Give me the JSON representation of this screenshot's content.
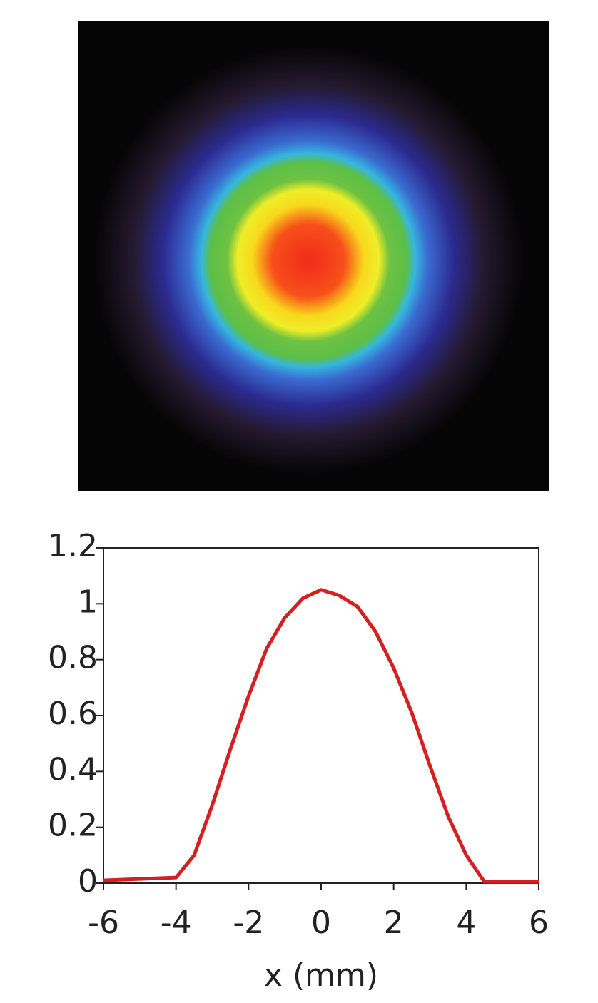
{
  "chart_data": {
    "type": "line",
    "x_label": "x (mm)",
    "x": [
      -6,
      -5,
      -4,
      -3.5,
      -3,
      -2.5,
      -2,
      -1.5,
      -1,
      -0.5,
      0,
      0.5,
      1,
      1.5,
      2,
      2.5,
      3,
      3.5,
      4,
      4.5,
      5,
      6
    ],
    "values": [
      0.01,
      0.015,
      0.02,
      0.1,
      0.28,
      0.48,
      0.67,
      0.84,
      0.95,
      1.02,
      1.05,
      1.03,
      0.99,
      0.9,
      0.77,
      0.61,
      0.42,
      0.24,
      0.1,
      0.005,
      0.005,
      0.005
    ],
    "color": "#d42020",
    "xlim": [
      -6,
      6
    ],
    "xticks": [
      -6,
      -4,
      -2,
      0,
      2,
      4,
      6
    ],
    "ylim": [
      0,
      1.2
    ],
    "yticks": [
      0,
      0.2,
      0.4,
      0.6,
      0.8,
      1,
      1.2
    ],
    "grid": false
  }
}
